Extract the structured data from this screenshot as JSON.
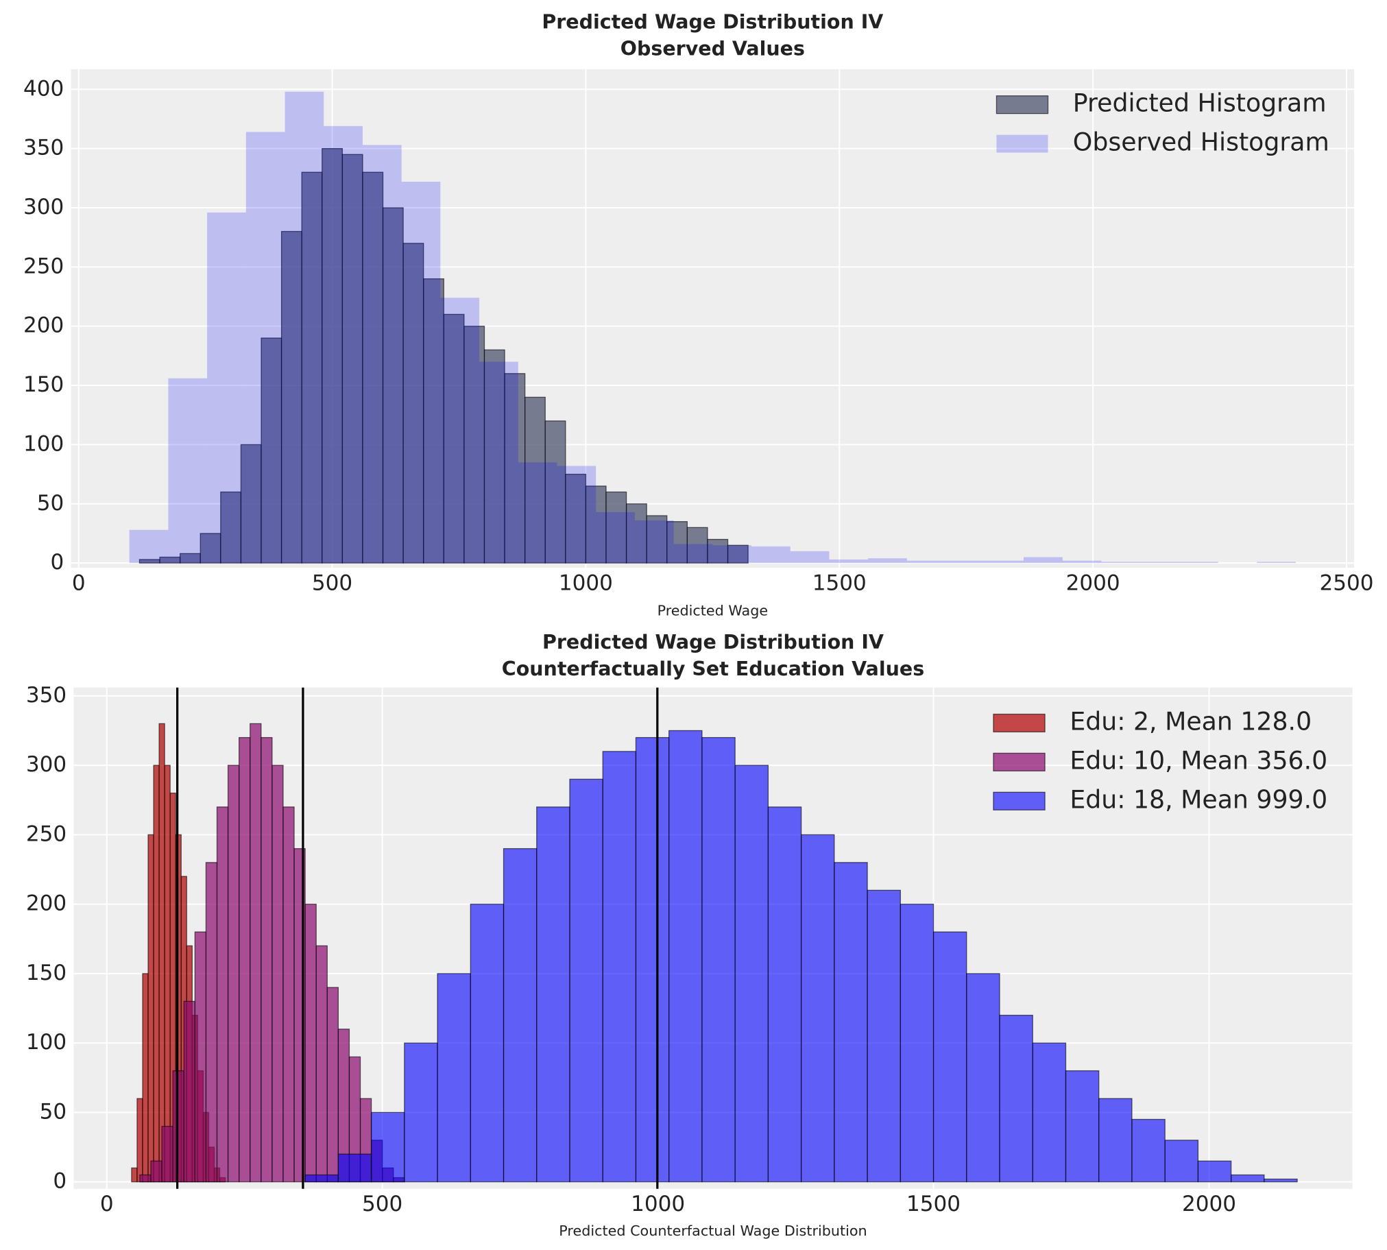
{
  "chart_data": [
    {
      "type": "histogram",
      "title": "Predicted Wage Distribution IV",
      "subtitle": "Observed Values",
      "xlabel": "Predicted Wage",
      "xlim": [
        -15,
        2515
      ],
      "ylim": [
        -4,
        417
      ],
      "xticks": [
        0,
        500,
        1000,
        1500,
        2000,
        2500
      ],
      "yticks": [
        0,
        50,
        100,
        150,
        200,
        250,
        300,
        350,
        400
      ],
      "grid": true,
      "legend": "upper right",
      "series": [
        {
          "name": "Predicted Histogram",
          "color": "#4f5470",
          "alpha": 0.75,
          "edgecolor": "#000000",
          "bins": [
            120,
            160,
            200,
            240,
            280,
            320,
            360,
            400,
            440,
            480,
            520,
            560,
            600,
            640,
            680,
            720,
            760,
            800,
            840,
            880,
            920,
            960,
            1000,
            1040,
            1080,
            1120,
            1160,
            1200,
            1240,
            1280,
            1320
          ],
          "values": [
            3,
            5,
            8,
            25,
            60,
            100,
            190,
            280,
            330,
            350,
            345,
            330,
            300,
            270,
            240,
            210,
            200,
            180,
            160,
            140,
            120,
            75,
            65,
            60,
            50,
            40,
            35,
            30,
            20,
            15
          ]
        },
        {
          "name": "Observed Histogram",
          "color": "#0000ff",
          "alpha": 0.2,
          "edgecolor": null,
          "bins": [
            100,
            176.7,
            253.3,
            330,
            406.7,
            483.3,
            560,
            636.7,
            713.3,
            790,
            866.7,
            943.3,
            1020,
            1096.7,
            1173.3,
            1250,
            1326.7,
            1403.3,
            1480,
            1556.7,
            1633.3,
            1710,
            1786.7,
            1863.3,
            1940,
            2016.7,
            2093.3,
            2170,
            2246.7,
            2323.3,
            2400
          ],
          "values": [
            28,
            156,
            296,
            364,
            398,
            369,
            353,
            322,
            224,
            170,
            85,
            82,
            43,
            36,
            16,
            15,
            14,
            10,
            3,
            4,
            2,
            2,
            2,
            5,
            2,
            1,
            1,
            1,
            0,
            1
          ]
        }
      ]
    },
    {
      "type": "histogram",
      "title": "Predicted Wage Distribution IV",
      "subtitle": "Counterfactually Set Education Values",
      "xlabel": "Predicted Counterfactual Wage Distribution",
      "xlim": [
        -60,
        2260
      ],
      "ylim": [
        -5,
        356
      ],
      "xticks": [
        0,
        500,
        1000,
        1500,
        2000
      ],
      "yticks": [
        0,
        50,
        100,
        150,
        200,
        250,
        300,
        350
      ],
      "grid": true,
      "legend": "upper right",
      "vlines": [
        128,
        356,
        999
      ],
      "vline_color": "#000000",
      "series": [
        {
          "name": "Edu: 2, Mean 128.0",
          "color": "#b00000",
          "alpha": 0.7,
          "edgecolor": "#000000",
          "bins": [
            45,
            55,
            65,
            75,
            85,
            95,
            105,
            115,
            125,
            135,
            145,
            155,
            165,
            175,
            185,
            195,
            205,
            215
          ],
          "values": [
            10,
            60,
            150,
            250,
            300,
            330,
            300,
            280,
            250,
            220,
            170,
            120,
            80,
            50,
            25,
            10,
            3
          ]
        },
        {
          "name": "Edu: 10, Mean 356.0",
          "color": "#8b0a6e",
          "alpha": 0.7,
          "edgecolor": "#000000",
          "bins": [
            60,
            80,
            100,
            120,
            140,
            160,
            180,
            200,
            220,
            240,
            260,
            280,
            300,
            320,
            340,
            360,
            380,
            400,
            420,
            440,
            460,
            480,
            500,
            520,
            540
          ],
          "values": [
            5,
            15,
            40,
            80,
            130,
            180,
            230,
            270,
            300,
            320,
            330,
            320,
            300,
            270,
            240,
            200,
            170,
            140,
            110,
            90,
            60,
            30,
            10,
            3
          ]
        },
        {
          "name": "Edu: 18, Mean 999.0",
          "color": "#0000ff",
          "alpha": 0.6,
          "edgecolor": "#000000",
          "bins": [
            360,
            420,
            480,
            540,
            600,
            660,
            720,
            780,
            840,
            900,
            960,
            1020,
            1080,
            1140,
            1200,
            1260,
            1320,
            1380,
            1440,
            1500,
            1560,
            1620,
            1680,
            1740,
            1800,
            1860,
            1920,
            1980,
            2040,
            2100,
            2160
          ],
          "values": [
            5,
            20,
            50,
            100,
            150,
            200,
            240,
            270,
            290,
            310,
            320,
            325,
            320,
            300,
            270,
            250,
            230,
            210,
            200,
            180,
            150,
            120,
            100,
            80,
            60,
            45,
            30,
            15,
            5,
            2
          ]
        }
      ]
    }
  ]
}
